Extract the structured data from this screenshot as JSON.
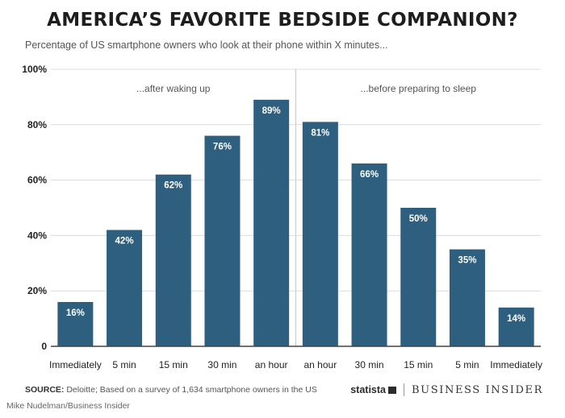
{
  "title": "AMERICA’S FAVORITE BEDSIDE COMPANION?",
  "subtitle": "Percentage of US smartphone owners who look at their phone within X minutes...",
  "source": {
    "label": "SOURCE:",
    "text": " Deloitte; Based on a survey of 1,634 smartphone owners in the US"
  },
  "credit": "Mike Nudelman/Business Insider",
  "brand": {
    "statista": "statista",
    "business_insider": "BUSINESS INSIDER"
  },
  "colors": {
    "bar": "#2e5f7f",
    "grid": "#dcdcdc",
    "axis": "#444444"
  },
  "chart_data": {
    "type": "bar",
    "categories": [
      "Immediately",
      "5 min",
      "15 min",
      "30 min",
      "an hour",
      "an hour",
      "30 min",
      "15 min",
      "5 min",
      "Immediately"
    ],
    "values": [
      16,
      42,
      62,
      76,
      89,
      81,
      66,
      50,
      35,
      14
    ],
    "data_labels": [
      "16%",
      "42%",
      "62%",
      "76%",
      "89%",
      "81%",
      "66%",
      "50%",
      "35%",
      "14%"
    ],
    "groups": [
      {
        "label": "...after waking up",
        "count": 5
      },
      {
        "label": "...before preparing to sleep",
        "count": 5
      }
    ],
    "yticks": [
      0,
      20,
      40,
      60,
      80,
      100
    ],
    "ytick_labels": [
      "0",
      "20%",
      "40%",
      "60%",
      "80%",
      "100%"
    ],
    "ylim": [
      0,
      100
    ],
    "grid": true
  }
}
